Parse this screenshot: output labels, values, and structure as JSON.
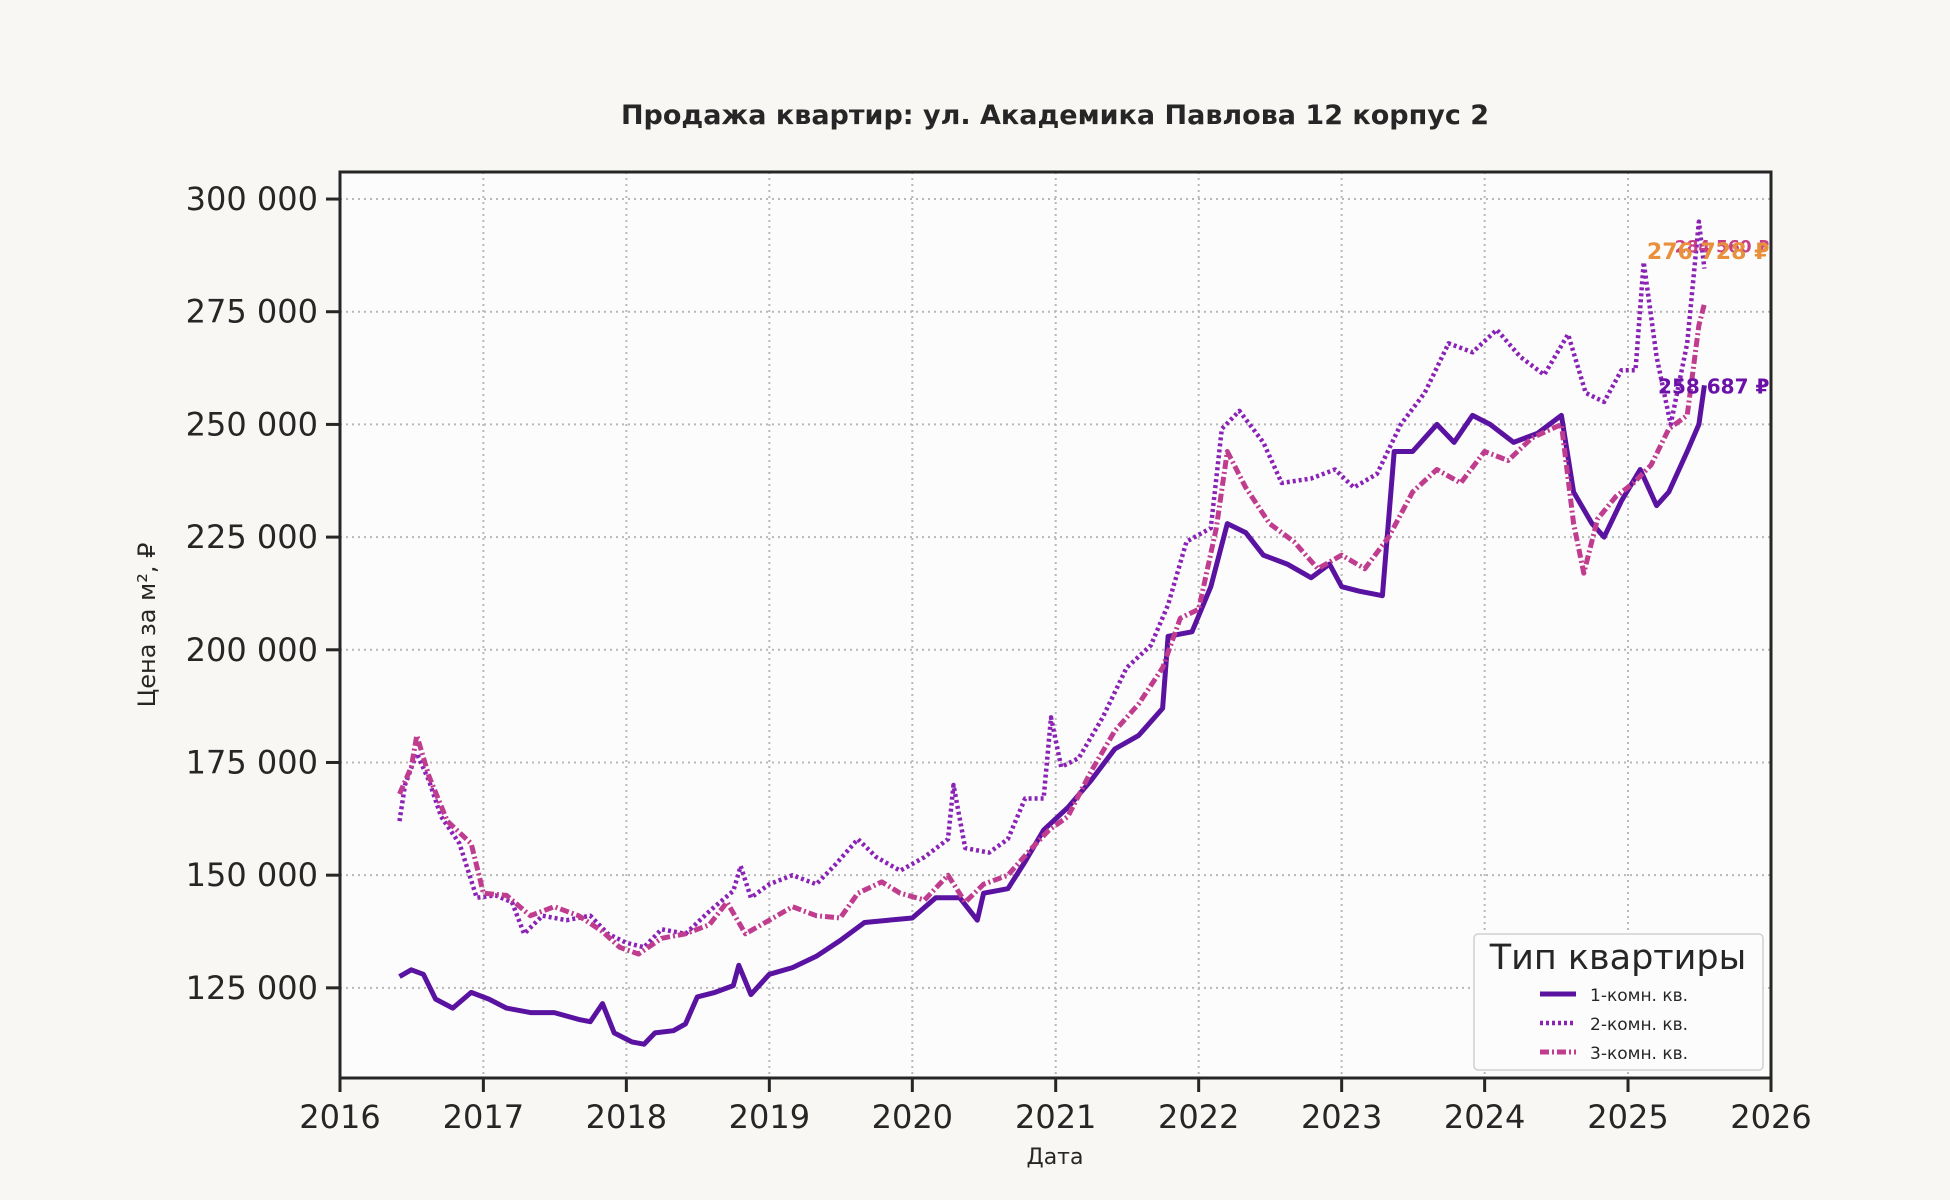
{
  "chart_data": {
    "type": "line",
    "title": "Продажа квартир: ул. Академика Павлова 12 корпус 2",
    "xlabel": "Дата",
    "ylabel": "Цена за м², ₽",
    "xlim": [
      "2016-01-01",
      "2026-01-01"
    ],
    "ylim": [
      105000,
      306000
    ],
    "x_ticks": [
      "2016",
      "2017",
      "2018",
      "2019",
      "2020",
      "2021",
      "2022",
      "2023",
      "2024",
      "2025",
      "2026"
    ],
    "y_ticks": [
      125000,
      150000,
      175000,
      200000,
      225000,
      250000,
      275000,
      300000
    ],
    "y_tick_labels": [
      "125 000",
      "150 000",
      "175 000",
      "200 000",
      "225 000",
      "250 000",
      "275 000",
      "300 000"
    ],
    "grid": true,
    "legend": {
      "title": "Тип квартиры",
      "position": "lower-right"
    },
    "series": [
      {
        "name": "1-комн. кв.",
        "color": "#5a12a0",
        "dash": "solid-thick",
        "points": [
          [
            "2016-06-01",
            127500
          ],
          [
            "2016-07-01",
            129000
          ],
          [
            "2016-08-01",
            128000
          ],
          [
            "2016-09-01",
            122500
          ],
          [
            "2016-10-15",
            120500
          ],
          [
            "2016-12-01",
            124000
          ],
          [
            "2017-01-15",
            122500
          ],
          [
            "2017-03-01",
            120500
          ],
          [
            "2017-05-01",
            119500
          ],
          [
            "2017-07-01",
            119500
          ],
          [
            "2017-09-01",
            118000
          ],
          [
            "2017-10-01",
            117500
          ],
          [
            "2017-11-01",
            121500
          ],
          [
            "2017-12-01",
            115000
          ],
          [
            "2018-01-15",
            113000
          ],
          [
            "2018-02-15",
            112500
          ],
          [
            "2018-03-15",
            115000
          ],
          [
            "2018-05-01",
            115500
          ],
          [
            "2018-06-01",
            117000
          ],
          [
            "2018-07-01",
            123000
          ],
          [
            "2018-08-15",
            124000
          ],
          [
            "2018-10-01",
            125500
          ],
          [
            "2018-10-15",
            130000
          ],
          [
            "2018-11-15",
            123500
          ],
          [
            "2019-01-01",
            128000
          ],
          [
            "2019-03-01",
            129500
          ],
          [
            "2019-05-01",
            132000
          ],
          [
            "2019-07-01",
            135500
          ],
          [
            "2019-09-01",
            139500
          ],
          [
            "2019-11-01",
            140000
          ],
          [
            "2020-01-01",
            140500
          ],
          [
            "2020-03-01",
            145000
          ],
          [
            "2020-05-01",
            145000
          ],
          [
            "2020-06-15",
            140000
          ],
          [
            "2020-07-01",
            146000
          ],
          [
            "2020-09-01",
            147000
          ],
          [
            "2020-10-15",
            153000
          ],
          [
            "2020-12-01",
            160000
          ],
          [
            "2021-02-01",
            165000
          ],
          [
            "2021-04-01",
            171000
          ],
          [
            "2021-06-01",
            178000
          ],
          [
            "2021-08-01",
            181000
          ],
          [
            "2021-10-01",
            187000
          ],
          [
            "2021-10-15",
            203000
          ],
          [
            "2021-12-15",
            204000
          ],
          [
            "2022-02-01",
            214000
          ],
          [
            "2022-03-15",
            228000
          ],
          [
            "2022-05-01",
            226000
          ],
          [
            "2022-06-15",
            221000
          ],
          [
            "2022-08-15",
            219000
          ],
          [
            "2022-10-15",
            216000
          ],
          [
            "2022-12-01",
            219000
          ],
          [
            "2023-01-01",
            214000
          ],
          [
            "2023-02-15",
            213000
          ],
          [
            "2023-04-15",
            212000
          ],
          [
            "2023-05-15",
            244000
          ],
          [
            "2023-07-01",
            244000
          ],
          [
            "2023-09-01",
            250000
          ],
          [
            "2023-10-15",
            246000
          ],
          [
            "2023-12-01",
            252000
          ],
          [
            "2024-01-15",
            250000
          ],
          [
            "2024-03-15",
            246000
          ],
          [
            "2024-05-15",
            248000
          ],
          [
            "2024-07-15",
            252000
          ],
          [
            "2024-08-15",
            235000
          ],
          [
            "2024-10-01",
            228000
          ],
          [
            "2024-11-01",
            225000
          ],
          [
            "2024-12-15",
            233000
          ],
          [
            "2025-02-01",
            240000
          ],
          [
            "2025-03-15",
            232000
          ],
          [
            "2025-04-15",
            235000
          ],
          [
            "2025-06-01",
            244000
          ],
          [
            "2025-07-01",
            250000
          ],
          [
            "2025-07-15",
            258687
          ]
        ],
        "end_label": "258 687 ₽"
      },
      {
        "name": "2-комн. кв.",
        "color": "#8b22b6",
        "dash": "dotted",
        "points": [
          [
            "2016-06-01",
            162000
          ],
          [
            "2016-06-15",
            170000
          ],
          [
            "2016-07-15",
            177000
          ],
          [
            "2016-08-15",
            171000
          ],
          [
            "2016-09-15",
            163000
          ],
          [
            "2016-11-01",
            157000
          ],
          [
            "2016-12-15",
            145000
          ],
          [
            "2017-02-01",
            145500
          ],
          [
            "2017-03-15",
            144000
          ],
          [
            "2017-04-15",
            137000
          ],
          [
            "2017-06-01",
            141000
          ],
          [
            "2017-08-01",
            140000
          ],
          [
            "2017-10-01",
            141000
          ],
          [
            "2017-11-15",
            137000
          ],
          [
            "2018-01-01",
            135000
          ],
          [
            "2018-02-15",
            134000
          ],
          [
            "2018-04-01",
            138000
          ],
          [
            "2018-06-01",
            137000
          ],
          [
            "2018-08-01",
            142000
          ],
          [
            "2018-10-01",
            146500
          ],
          [
            "2018-10-20",
            152000
          ],
          [
            "2018-11-15",
            145000
          ],
          [
            "2019-01-01",
            148000
          ],
          [
            "2019-03-01",
            150000
          ],
          [
            "2019-05-01",
            148000
          ],
          [
            "2019-06-15",
            152000
          ],
          [
            "2019-08-15",
            158000
          ],
          [
            "2019-10-01",
            154000
          ],
          [
            "2019-12-01",
            151000
          ],
          [
            "2020-02-01",
            154000
          ],
          [
            "2020-04-01",
            158000
          ],
          [
            "2020-04-15",
            170000
          ],
          [
            "2020-05-15",
            156000
          ],
          [
            "2020-07-15",
            155000
          ],
          [
            "2020-09-01",
            158000
          ],
          [
            "2020-10-15",
            167000
          ],
          [
            "2020-12-01",
            167000
          ],
          [
            "2020-12-20",
            185000
          ],
          [
            "2021-01-15",
            174000
          ],
          [
            "2021-03-01",
            176000
          ],
          [
            "2021-05-01",
            185000
          ],
          [
            "2021-07-01",
            196000
          ],
          [
            "2021-09-01",
            201000
          ],
          [
            "2021-10-15",
            210000
          ],
          [
            "2021-12-01",
            224000
          ],
          [
            "2022-02-01",
            227000
          ],
          [
            "2022-03-01",
            249000
          ],
          [
            "2022-04-15",
            253000
          ],
          [
            "2022-06-15",
            246000
          ],
          [
            "2022-08-01",
            237000
          ],
          [
            "2022-10-15",
            238000
          ],
          [
            "2022-12-15",
            240000
          ],
          [
            "2023-02-01",
            236000
          ],
          [
            "2023-04-01",
            239000
          ],
          [
            "2023-06-01",
            250000
          ],
          [
            "2023-08-01",
            257000
          ],
          [
            "2023-10-01",
            268000
          ],
          [
            "2023-12-01",
            266000
          ],
          [
            "2024-02-01",
            271000
          ],
          [
            "2024-04-01",
            265000
          ],
          [
            "2024-06-01",
            261000
          ],
          [
            "2024-08-01",
            270000
          ],
          [
            "2024-09-15",
            257000
          ],
          [
            "2024-11-01",
            255000
          ],
          [
            "2024-12-15",
            262000
          ],
          [
            "2025-01-20",
            262000
          ],
          [
            "2025-02-10",
            286000
          ],
          [
            "2025-03-15",
            265000
          ],
          [
            "2025-04-20",
            250000
          ],
          [
            "2025-06-01",
            268000
          ],
          [
            "2025-07-01",
            295000
          ],
          [
            "2025-07-15",
            284560
          ]
        ],
        "end_label": "284 560 ₽"
      },
      {
        "name": "3-комн. кв.",
        "color": "#c03c8e",
        "dash": "dash-dot",
        "points": [
          [
            "2016-06-01",
            168000
          ],
          [
            "2016-07-01",
            174000
          ],
          [
            "2016-07-15",
            181000
          ],
          [
            "2016-08-15",
            172000
          ],
          [
            "2016-10-01",
            162000
          ],
          [
            "2016-12-01",
            157000
          ],
          [
            "2017-01-01",
            146000
          ],
          [
            "2017-03-01",
            145500
          ],
          [
            "2017-05-01",
            141000
          ],
          [
            "2017-07-01",
            143000
          ],
          [
            "2017-09-01",
            141000
          ],
          [
            "2017-11-01",
            137500
          ],
          [
            "2017-12-15",
            134000
          ],
          [
            "2018-02-01",
            132500
          ],
          [
            "2018-04-01",
            136000
          ],
          [
            "2018-06-01",
            137000
          ],
          [
            "2018-08-01",
            139000
          ],
          [
            "2018-09-15",
            144000
          ],
          [
            "2018-11-01",
            137000
          ],
          [
            "2019-01-01",
            140000
          ],
          [
            "2019-03-01",
            143000
          ],
          [
            "2019-05-01",
            141000
          ],
          [
            "2019-07-01",
            140500
          ],
          [
            "2019-08-15",
            146000
          ],
          [
            "2019-10-15",
            148500
          ],
          [
            "2019-12-01",
            146000
          ],
          [
            "2020-02-01",
            144500
          ],
          [
            "2020-04-01",
            150000
          ],
          [
            "2020-05-15",
            144000
          ],
          [
            "2020-07-01",
            148000
          ],
          [
            "2020-09-01",
            150000
          ],
          [
            "2020-11-01",
            156000
          ],
          [
            "2020-12-15",
            160000
          ],
          [
            "2021-02-01",
            163000
          ],
          [
            "2021-04-01",
            173000
          ],
          [
            "2021-06-01",
            182000
          ],
          [
            "2021-08-01",
            188000
          ],
          [
            "2021-10-01",
            196000
          ],
          [
            "2021-11-15",
            207000
          ],
          [
            "2022-01-01",
            209000
          ],
          [
            "2022-02-15",
            227000
          ],
          [
            "2022-03-15",
            244000
          ],
          [
            "2022-05-01",
            236000
          ],
          [
            "2022-07-01",
            228000
          ],
          [
            "2022-09-01",
            224000
          ],
          [
            "2022-11-01",
            218000
          ],
          [
            "2023-01-01",
            221000
          ],
          [
            "2023-03-01",
            218000
          ],
          [
            "2023-05-01",
            225000
          ],
          [
            "2023-07-01",
            235000
          ],
          [
            "2023-09-01",
            240000
          ],
          [
            "2023-11-01",
            237000
          ],
          [
            "2024-01-01",
            244000
          ],
          [
            "2024-03-01",
            242000
          ],
          [
            "2024-05-01",
            247000
          ],
          [
            "2024-07-15",
            250000
          ],
          [
            "2024-08-15",
            228000
          ],
          [
            "2024-09-10",
            217000
          ],
          [
            "2024-10-15",
            229000
          ],
          [
            "2024-12-01",
            234000
          ],
          [
            "2025-01-15",
            237000
          ],
          [
            "2025-03-01",
            241000
          ],
          [
            "2025-04-15",
            249000
          ],
          [
            "2025-06-01",
            252000
          ],
          [
            "2025-07-01",
            272000
          ],
          [
            "2025-07-15",
            276728
          ]
        ],
        "end_label": "276 728 ₽"
      }
    ],
    "end_label_colors": [
      "#6a11a8",
      "#c53e86",
      "#e8903c"
    ]
  }
}
